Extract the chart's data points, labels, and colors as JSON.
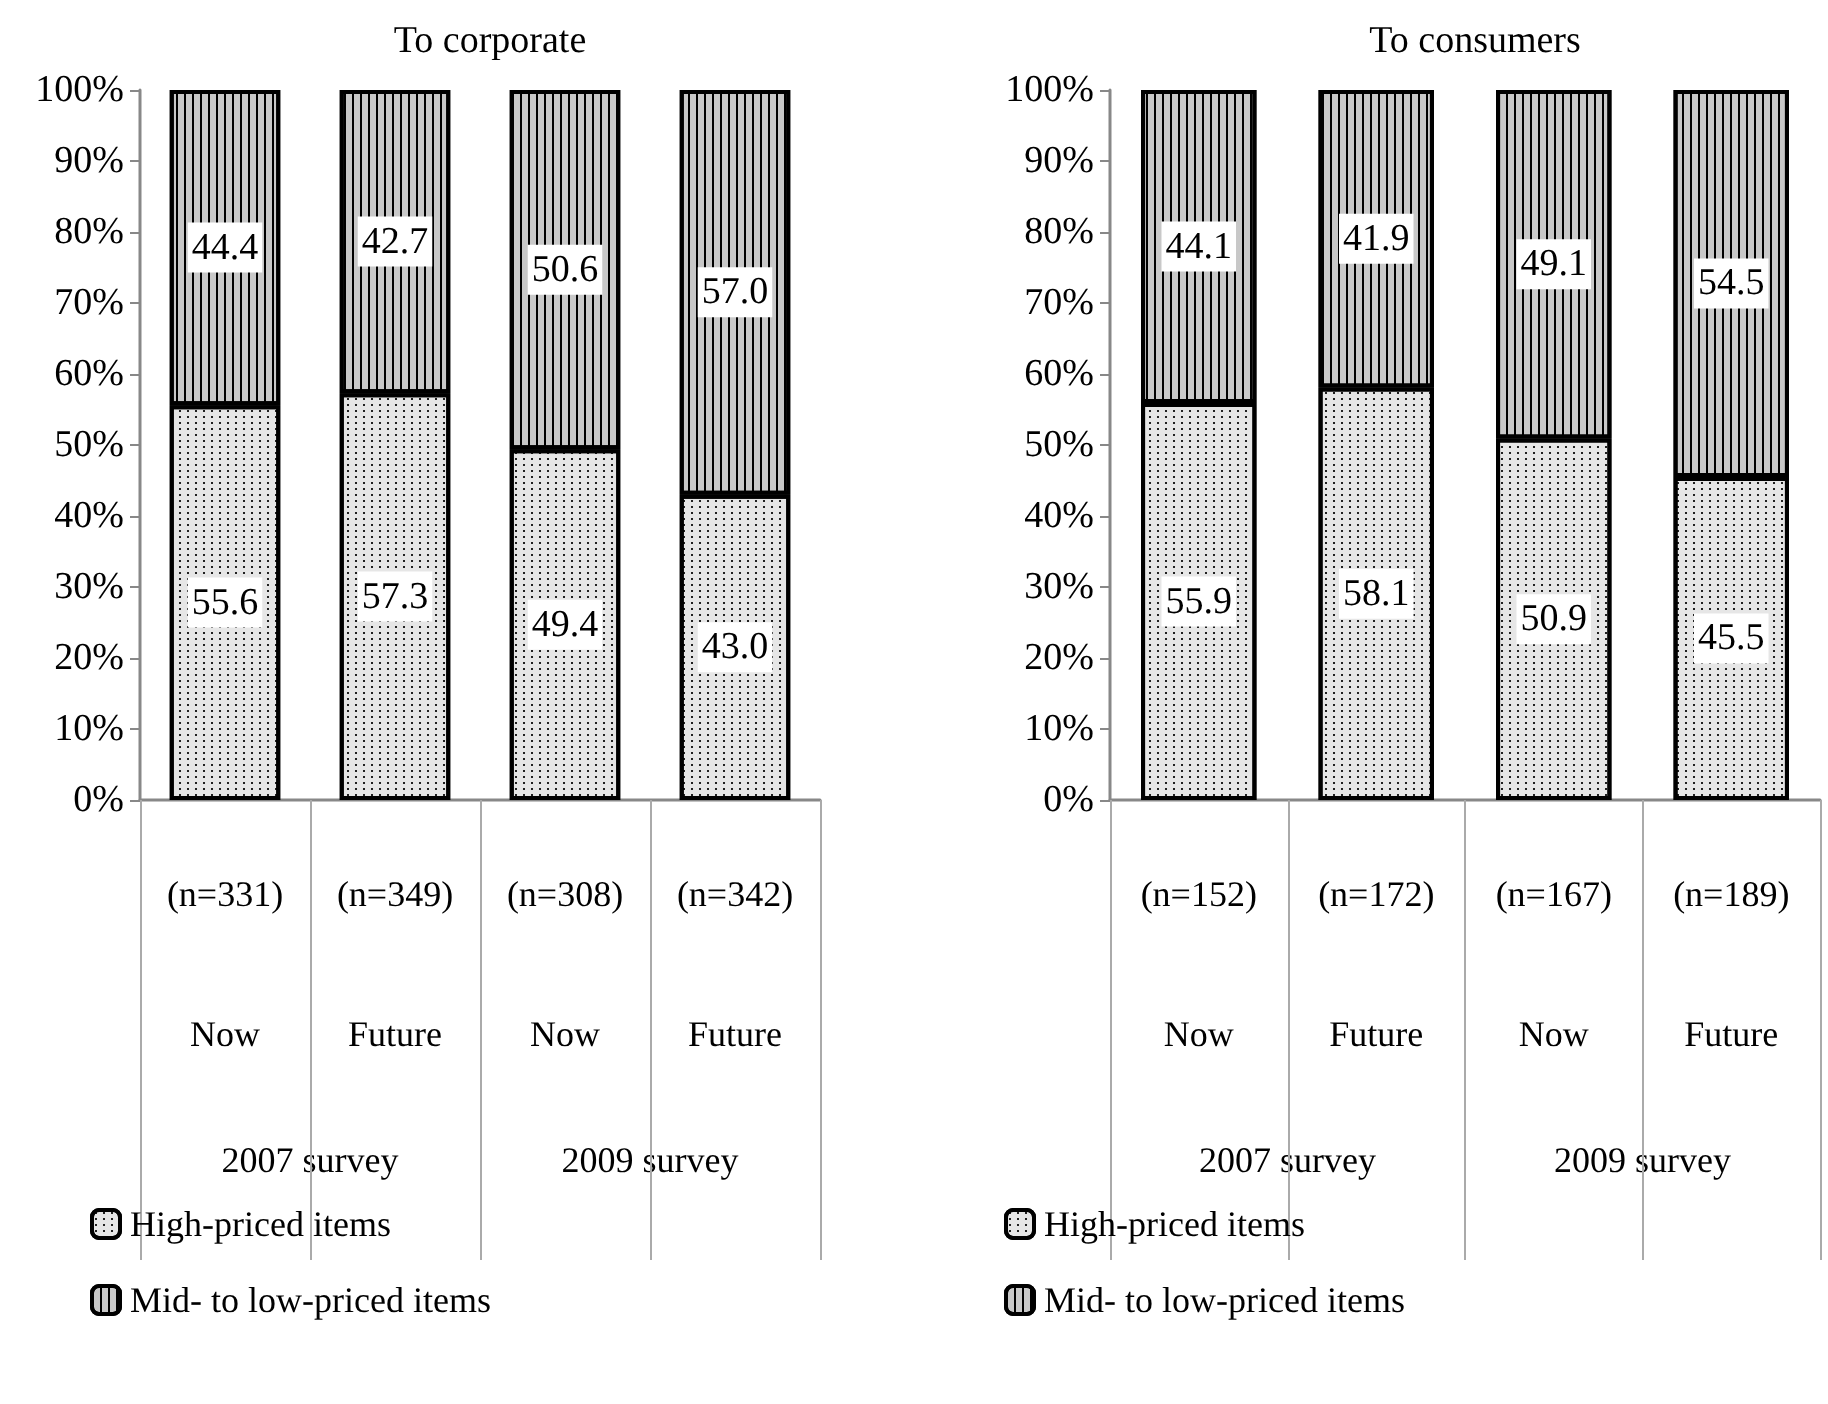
{
  "chart_data": [
    {
      "type": "bar",
      "title": "To corporate",
      "categories": [
        "(n=331)\nNow",
        "(n=349)\nFuture",
        "(n=308)\nNow",
        "(n=342)\nFuture"
      ],
      "stacked": true,
      "ylim": [
        0,
        100
      ],
      "yticks": [
        {
          "value": 0,
          "label": "0%"
        },
        {
          "value": 10,
          "label": "10%"
        },
        {
          "value": 20,
          "label": "20%"
        },
        {
          "value": 30,
          "label": "30%"
        },
        {
          "value": 40,
          "label": "40%"
        },
        {
          "value": 50,
          "label": "50%"
        },
        {
          "value": 60,
          "label": "60%"
        },
        {
          "value": 70,
          "label": "70%"
        },
        {
          "value": 80,
          "label": "80%"
        },
        {
          "value": 90,
          "label": "90%"
        },
        {
          "value": 100,
          "label": "100%"
        }
      ],
      "grid": false,
      "legend": "bottom left",
      "annotations": [
        "2007 survey",
        "2009 survey"
      ],
      "series": [
        {
          "name": "High-priced items",
          "color": "#e6e6e6",
          "values": [
            55.6,
            57.3,
            49.4,
            43.0
          ],
          "value_labels": [
            "55.6",
            "57.3",
            "49.4",
            "43.0"
          ]
        },
        {
          "name": "Mid- to low-priced items",
          "color": "#c8c8c8",
          "values": [
            44.4,
            42.7,
            50.6,
            57.0
          ],
          "value_labels": [
            "44.4",
            "42.7",
            "50.6",
            "57.0"
          ]
        }
      ]
    },
    {
      "type": "bar",
      "title": "To consumers",
      "categories": [
        "(n=152)\nNow",
        "(n=172)\nFuture",
        "(n=167)\nNow",
        "(n=189)\nFuture"
      ],
      "stacked": true,
      "ylim": [
        0,
        100
      ],
      "yticks": [
        {
          "value": 0,
          "label": "0%"
        },
        {
          "value": 10,
          "label": "10%"
        },
        {
          "value": 20,
          "label": "20%"
        },
        {
          "value": 30,
          "label": "30%"
        },
        {
          "value": 40,
          "label": "40%"
        },
        {
          "value": 50,
          "label": "50%"
        },
        {
          "value": 60,
          "label": "60%"
        },
        {
          "value": 70,
          "label": "70%"
        },
        {
          "value": 80,
          "label": "80%"
        },
        {
          "value": 90,
          "label": "90%"
        },
        {
          "value": 100,
          "label": "100%"
        }
      ],
      "grid": false,
      "legend": "bottom left",
      "annotations": [
        "2007 survey",
        "2009 survey"
      ],
      "series": [
        {
          "name": "High-priced items",
          "color": "#e6e6e6",
          "values": [
            55.9,
            58.1,
            50.9,
            45.5
          ],
          "value_labels": [
            "55.9",
            "58.1",
            "50.9",
            "45.5"
          ]
        },
        {
          "name": "Mid- to low-priced items",
          "color": "#c8c8c8",
          "values": [
            44.1,
            41.9,
            49.1,
            54.5
          ],
          "value_labels": [
            "44.1",
            "41.9",
            "49.1",
            "54.5"
          ]
        }
      ]
    }
  ]
}
